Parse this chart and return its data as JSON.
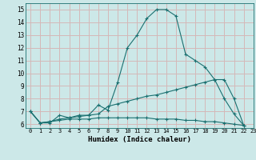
{
  "title": "",
  "xlabel": "Humidex (Indice chaleur)",
  "ylabel": "",
  "xlim": [
    -0.5,
    23
  ],
  "ylim": [
    5.7,
    15.5
  ],
  "yticks": [
    6,
    7,
    8,
    9,
    10,
    11,
    12,
    13,
    14,
    15
  ],
  "xticks": [
    0,
    1,
    2,
    3,
    4,
    5,
    6,
    7,
    8,
    9,
    10,
    11,
    12,
    13,
    14,
    15,
    16,
    17,
    18,
    19,
    20,
    21,
    22,
    23
  ],
  "bg_color": "#cce8e8",
  "line_color": "#1a7070",
  "grid_color": "#d4b8b8",
  "series": [
    {
      "x": [
        0,
        1,
        2,
        3,
        4,
        5,
        6,
        7,
        8,
        9,
        10,
        11,
        12,
        13,
        14,
        15,
        16,
        17,
        18,
        19,
        20,
        21,
        22
      ],
      "y": [
        7.0,
        6.1,
        6.1,
        6.7,
        6.5,
        6.7,
        6.7,
        7.5,
        7.1,
        9.3,
        12.0,
        13.0,
        14.3,
        15.0,
        15.0,
        14.5,
        11.5,
        11.0,
        10.5,
        9.5,
        8.0,
        6.8,
        5.9
      ]
    },
    {
      "x": [
        0,
        1,
        2,
        3,
        4,
        5,
        6,
        7,
        8,
        9,
        10,
        11,
        12,
        13,
        14,
        15,
        16,
        17,
        18,
        19,
        20,
        21,
        22
      ],
      "y": [
        7.0,
        6.1,
        6.2,
        6.4,
        6.5,
        6.6,
        6.7,
        6.8,
        7.4,
        7.6,
        7.8,
        8.0,
        8.2,
        8.3,
        8.5,
        8.7,
        8.9,
        9.1,
        9.3,
        9.5,
        9.5,
        8.0,
        5.9
      ]
    },
    {
      "x": [
        0,
        1,
        2,
        3,
        4,
        5,
        6,
        7,
        8,
        9,
        10,
        11,
        12,
        13,
        14,
        15,
        16,
        17,
        18,
        19,
        20,
        21,
        22
      ],
      "y": [
        7.0,
        6.1,
        6.2,
        6.3,
        6.4,
        6.4,
        6.4,
        6.5,
        6.5,
        6.5,
        6.5,
        6.5,
        6.5,
        6.4,
        6.4,
        6.4,
        6.3,
        6.3,
        6.2,
        6.2,
        6.1,
        6.0,
        5.9
      ]
    }
  ]
}
